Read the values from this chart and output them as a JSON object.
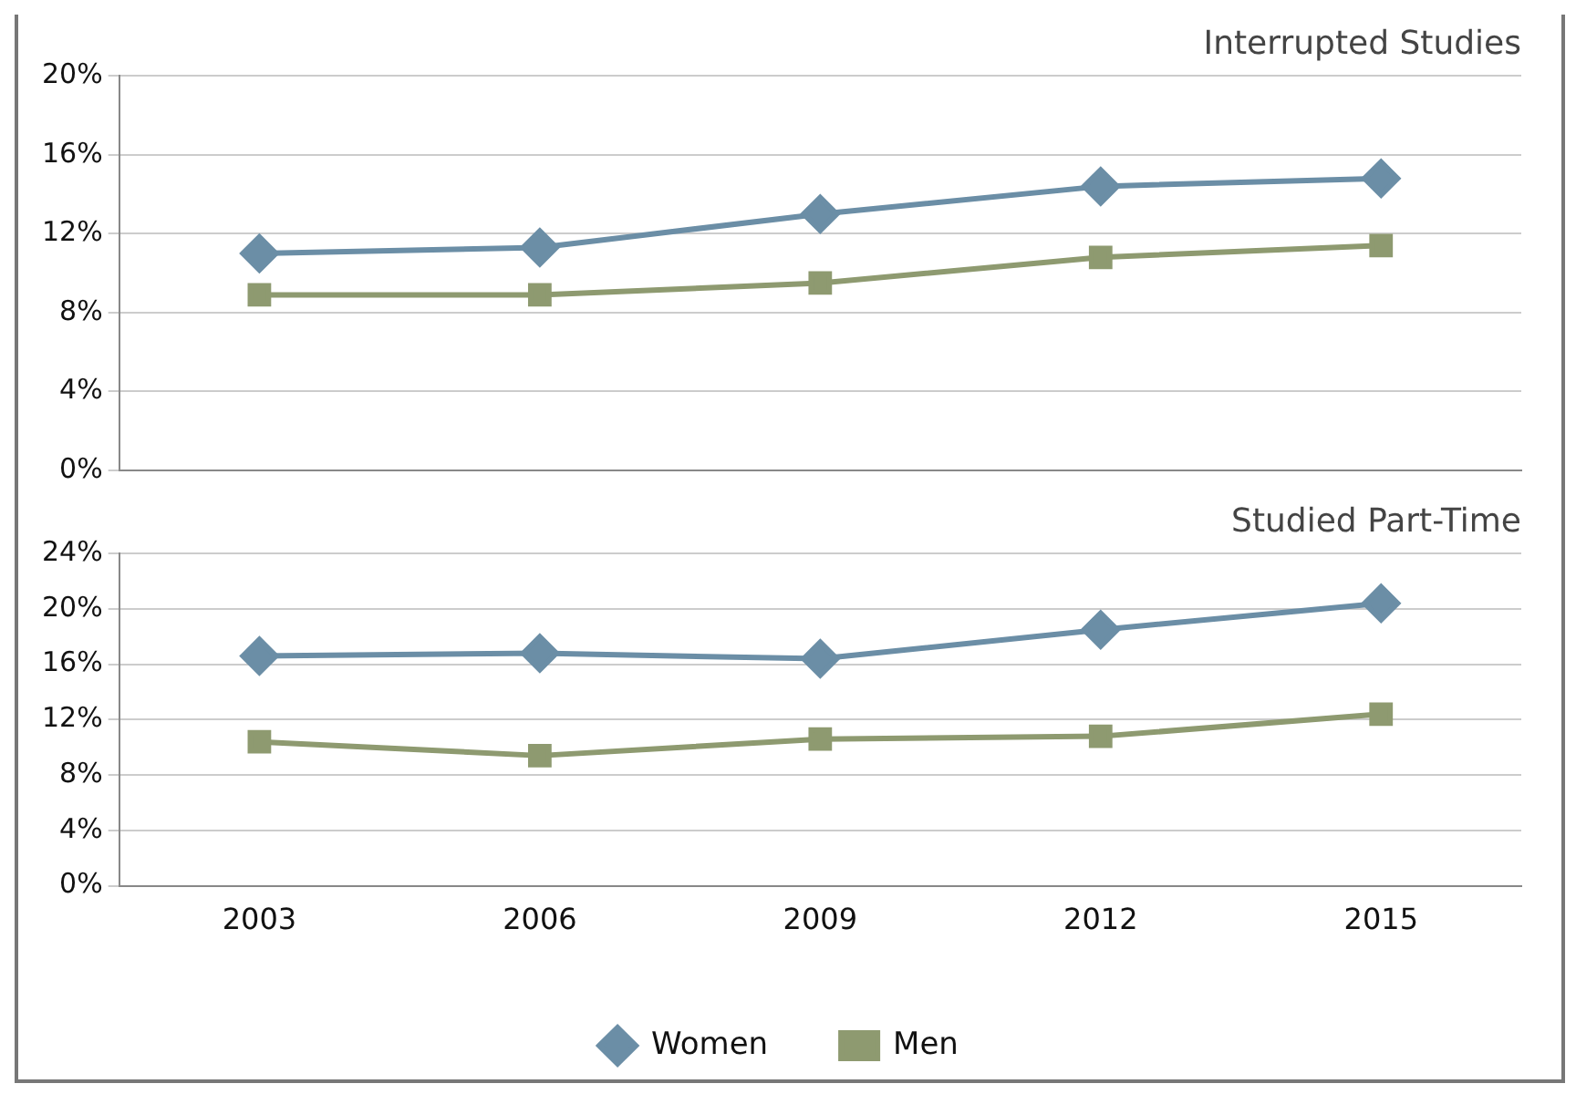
{
  "chart_data": [
    {
      "type": "line",
      "title": "Interrupted Studies",
      "categories": [
        "2003",
        "2006",
        "2009",
        "2012",
        "2015"
      ],
      "ylim": [
        0,
        20
      ],
      "yticks": [
        {
          "value": 0,
          "label": "0%"
        },
        {
          "value": 4,
          "label": "4%"
        },
        {
          "value": 8,
          "label": "8%"
        },
        {
          "value": 12,
          "label": "12%"
        },
        {
          "value": 16,
          "label": "16%"
        },
        {
          "value": 20,
          "label": "20%"
        }
      ],
      "grid": "y",
      "tick_labels": "y",
      "legend": false,
      "series": [
        {
          "color": "#6b8ea6",
          "marker": "diamond",
          "values": [
            11.0,
            11.3,
            13.0,
            14.4,
            14.8
          ]
        },
        {
          "color": "#8e9a70",
          "marker": "square",
          "values": [
            8.9,
            8.9,
            9.5,
            10.8,
            11.4
          ]
        }
      ]
    },
    {
      "type": "line",
      "title": "Studied Part-Time",
      "categories": [
        "2003",
        "2006",
        "2009",
        "2012",
        "2015"
      ],
      "ylim": [
        0,
        24
      ],
      "yticks": [
        {
          "value": 0,
          "label": "0%"
        },
        {
          "value": 4,
          "label": "4%"
        },
        {
          "value": 8,
          "label": "8%"
        },
        {
          "value": 12,
          "label": "12%"
        },
        {
          "value": 16,
          "label": "16%"
        },
        {
          "value": 20,
          "label": "20%"
        },
        {
          "value": 24,
          "label": "24%"
        }
      ],
      "grid": "y",
      "legend": "bottom",
      "series": [
        {
          "name": "Women",
          "color": "#6b8ea6",
          "marker": "diamond",
          "values": [
            16.6,
            16.8,
            16.4,
            18.5,
            20.4
          ]
        },
        {
          "name": "Men",
          "color": "#8e9a70",
          "marker": "square",
          "values": [
            10.4,
            9.4,
            10.6,
            10.8,
            12.4
          ]
        }
      ]
    }
  ]
}
